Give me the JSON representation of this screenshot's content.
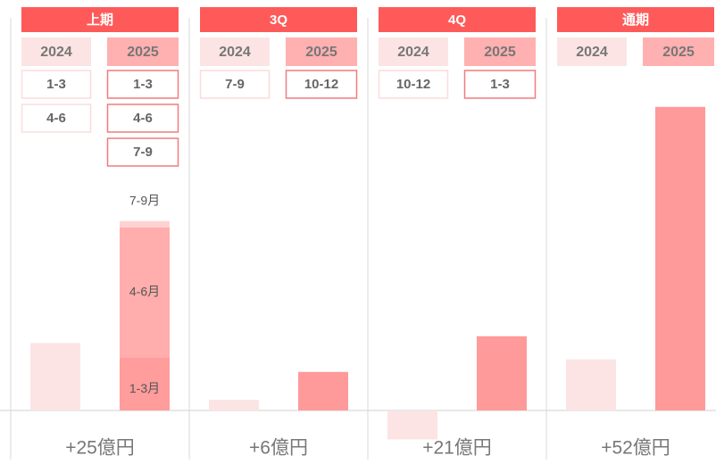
{
  "chart_data": [
    {
      "type": "bar",
      "title": "上期",
      "categories": [
        "2024",
        "2025"
      ],
      "periods": [
        [
          "1-3",
          "4-6"
        ],
        [
          "1-3",
          "4-6",
          "7-9"
        ]
      ],
      "values": [
        14,
        null
      ],
      "colors": [
        "#fce4e4",
        "#ff9a9a"
      ],
      "segments": [
        {
          "name": "1-3月",
          "value": 11,
          "color": "#ff9c9c"
        },
        {
          "name": "4-6月",
          "value": 27,
          "color": "#ffadad"
        },
        {
          "name": "7-9月",
          "value": 1.3,
          "color": "#ffd2d2"
        }
      ],
      "annotation": "+25億円",
      "ylim": [
        -10,
        65
      ]
    },
    {
      "type": "bar",
      "title": "3Q",
      "categories": [
        "2024",
        "2025"
      ],
      "periods": [
        [
          "7-9"
        ],
        [
          "10-12"
        ]
      ],
      "values": [
        2.2,
        8
      ],
      "colors": [
        "#fce4e4",
        "#ff9a9a"
      ],
      "annotation": "+6億円",
      "ylim": [
        -10,
        65
      ]
    },
    {
      "type": "bar",
      "title": "4Q",
      "categories": [
        "2024",
        "2025"
      ],
      "periods": [
        [
          "10-12"
        ],
        [
          "1-3"
        ]
      ],
      "values": [
        -6,
        15.4
      ],
      "colors": [
        "#fce4e4",
        "#ff9a9a"
      ],
      "annotation": "+21億円",
      "ylim": [
        -10,
        65
      ]
    },
    {
      "type": "bar",
      "title": "通期",
      "categories": [
        "2024",
        "2025"
      ],
      "periods": [
        [],
        []
      ],
      "values": [
        10.6,
        63
      ],
      "colors": [
        "#fce4e4",
        "#ff9a9a"
      ],
      "annotation": "+52億円",
      "ylim": [
        -10,
        65
      ]
    }
  ]
}
